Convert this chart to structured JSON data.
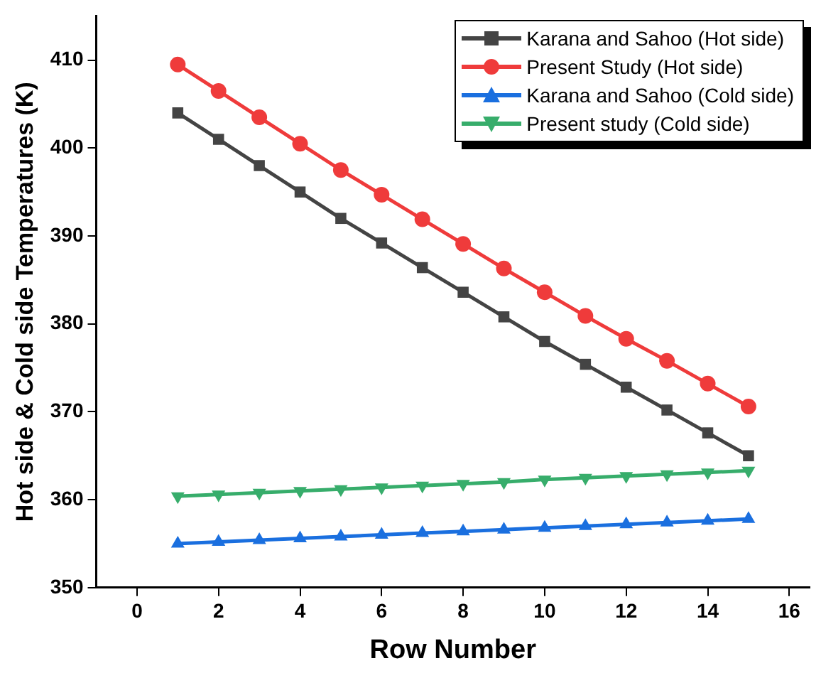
{
  "chart_data": {
    "type": "line",
    "xlabel": "Row Number",
    "ylabel": "Hot side & Cold side Temperatures (K)",
    "x": [
      1,
      2,
      3,
      4,
      5,
      6,
      7,
      8,
      9,
      10,
      11,
      12,
      13,
      14,
      15
    ],
    "series": [
      {
        "name": "Karana and Sahoo (Hot side)",
        "color": "#444444",
        "marker": "square",
        "values": [
          404,
          401,
          398,
          395,
          392,
          389.2,
          386.4,
          383.6,
          380.8,
          378,
          375.4,
          372.8,
          370.2,
          367.6,
          365
        ]
      },
      {
        "name": "Present Study (Hot side)",
        "color": "#ef3b3b",
        "marker": "circle",
        "values": [
          409.5,
          406.5,
          403.5,
          400.5,
          397.5,
          394.7,
          391.9,
          389.1,
          386.3,
          383.6,
          380.9,
          378.3,
          375.8,
          373.2,
          370.6
        ]
      },
      {
        "name": "Karana and Sahoo (Cold side)",
        "color": "#1a6fdf",
        "marker": "triangle",
        "values": [
          355,
          355.2,
          355.4,
          355.6,
          355.8,
          356,
          356.2,
          356.4,
          356.6,
          356.8,
          357,
          357.2,
          357.4,
          357.6,
          357.8
        ]
      },
      {
        "name": "Present study (Cold side)",
        "color": "#37ad6b",
        "marker": "triangle-down",
        "values": [
          360.4,
          360.6,
          360.8,
          361,
          361.2,
          361.4,
          361.6,
          361.8,
          362,
          362.3,
          362.5,
          362.7,
          362.9,
          363.1,
          363.3
        ]
      }
    ],
    "xlim": [
      -1,
      16.5
    ],
    "xticks": [
      0,
      2,
      4,
      6,
      8,
      10,
      12,
      14,
      16
    ],
    "ylim": [
      350,
      415
    ],
    "yticks": [
      350,
      360,
      370,
      380,
      390,
      400,
      410
    ],
    "grid": false,
    "legend": "top right"
  }
}
